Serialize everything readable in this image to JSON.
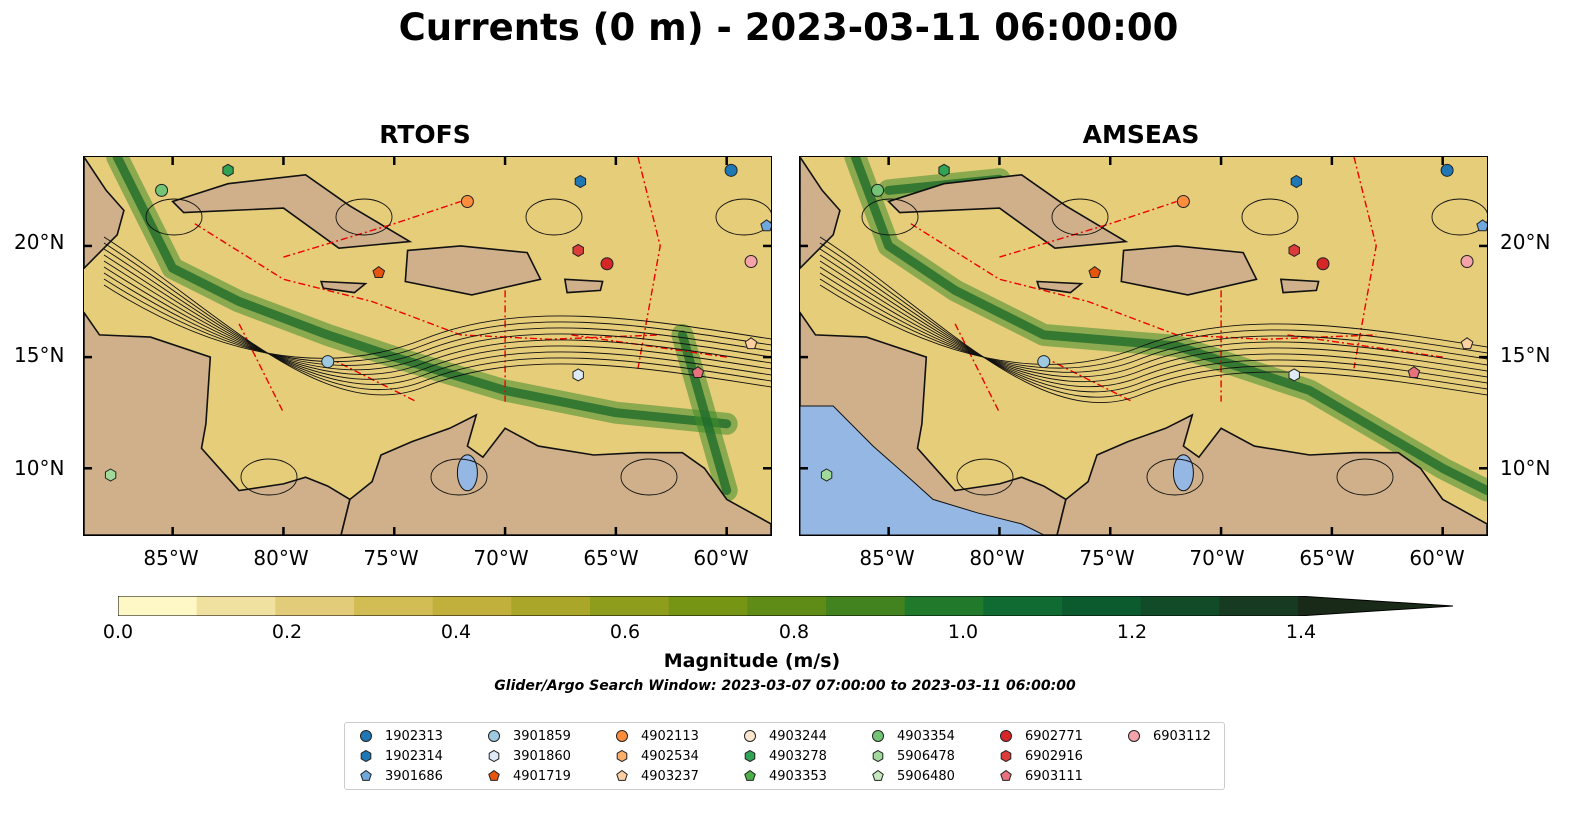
{
  "title": "Currents (0 m) - 2023-03-11 06:00:00",
  "panels": [
    {
      "title": "RTOFS"
    },
    {
      "title": "AMSEAS"
    }
  ],
  "lat_labels": [
    "20°N",
    "15°N",
    "10°N"
  ],
  "lon_labels": [
    "85°W",
    "80°W",
    "75°W",
    "70°W",
    "65°W",
    "60°W"
  ],
  "colorbar": {
    "label": "Magnitude (m/s)",
    "ticks": [
      "0.0",
      "0.2",
      "0.4",
      "0.6",
      "0.8",
      "1.0",
      "1.2",
      "1.4"
    ],
    "min": 0.0,
    "max": 1.5,
    "extend": "max",
    "colors": [
      "#fdf8c5",
      "#f0e1a0",
      "#e2cc7a",
      "#d2bd55",
      "#c1b03c",
      "#a9a62a",
      "#8f9d1c",
      "#779515",
      "#5f8c17",
      "#43831f",
      "#217a2b",
      "#106b32",
      "#0b5b2f",
      "#124b28",
      "#173a22",
      "#1a2a18"
    ]
  },
  "search_window": "Glider/Argo Search Window: 2023-03-07 07:00:00 to 2023-03-11 06:00:00",
  "legend": [
    {
      "id": "1902313",
      "marker": "circle",
      "color": "#1f77b4"
    },
    {
      "id": "1902314",
      "marker": "hexagon",
      "color": "#1f77b4"
    },
    {
      "id": "3901686",
      "marker": "pentagon",
      "color": "#6fa8dc"
    },
    {
      "id": "3901859",
      "marker": "circle",
      "color": "#9ecae1"
    },
    {
      "id": "3901860",
      "marker": "hexagon",
      "color": "#deebf7"
    },
    {
      "id": "4901719",
      "marker": "pentagon",
      "color": "#e6550d"
    },
    {
      "id": "4902113",
      "marker": "circle",
      "color": "#fd8d3c"
    },
    {
      "id": "4902534",
      "marker": "hexagon",
      "color": "#fdae6b"
    },
    {
      "id": "4903237",
      "marker": "pentagon",
      "color": "#fdd0a2"
    },
    {
      "id": "4903244",
      "marker": "circle",
      "color": "#fee6ce"
    },
    {
      "id": "4903278",
      "marker": "hexagon",
      "color": "#31a354"
    },
    {
      "id": "4903353",
      "marker": "pentagon",
      "color": "#4daf4a"
    },
    {
      "id": "4903354",
      "marker": "circle",
      "color": "#74c476"
    },
    {
      "id": "5906478",
      "marker": "hexagon",
      "color": "#a1d99b"
    },
    {
      "id": "5906480",
      "marker": "pentagon",
      "color": "#c7e9c0"
    },
    {
      "id": "6902771",
      "marker": "circle",
      "color": "#d62728"
    },
    {
      "id": "6902916",
      "marker": "hexagon",
      "color": "#de3b3b"
    },
    {
      "id": "6903111",
      "marker": "pentagon",
      "color": "#e7717d"
    },
    {
      "id": "6903112",
      "marker": "circle",
      "color": "#f4a3a8"
    }
  ],
  "floats": [
    {
      "id": "4903278",
      "lon": -82.5,
      "lat": 23.4
    },
    {
      "id": "4903354",
      "lon": -85.5,
      "lat": 22.5
    },
    {
      "id": "1902313",
      "lon": -59.8,
      "lat": 23.4
    },
    {
      "id": "1902314",
      "lon": -66.6,
      "lat": 22.9
    },
    {
      "id": "4902113",
      "lon": -71.7,
      "lat": 22.0
    },
    {
      "id": "4901719",
      "lon": -75.7,
      "lat": 18.8
    },
    {
      "id": "6902916",
      "lon": -66.7,
      "lat": 19.8
    },
    {
      "id": "6902771",
      "lon": -65.4,
      "lat": 19.2
    },
    {
      "id": "6903112",
      "lon": -58.9,
      "lat": 19.3
    },
    {
      "id": "3901686",
      "lon": -58.2,
      "lat": 20.9
    },
    {
      "id": "4903237",
      "lon": -58.9,
      "lat": 15.6
    },
    {
      "id": "6903111",
      "lon": -61.3,
      "lat": 14.3
    },
    {
      "id": "3901860",
      "lon": -66.7,
      "lat": 14.2
    },
    {
      "id": "3901859",
      "lon": -78.0,
      "lat": 14.8
    },
    {
      "id": "5906478",
      "lon": -87.8,
      "lat": 9.7
    }
  ]
}
